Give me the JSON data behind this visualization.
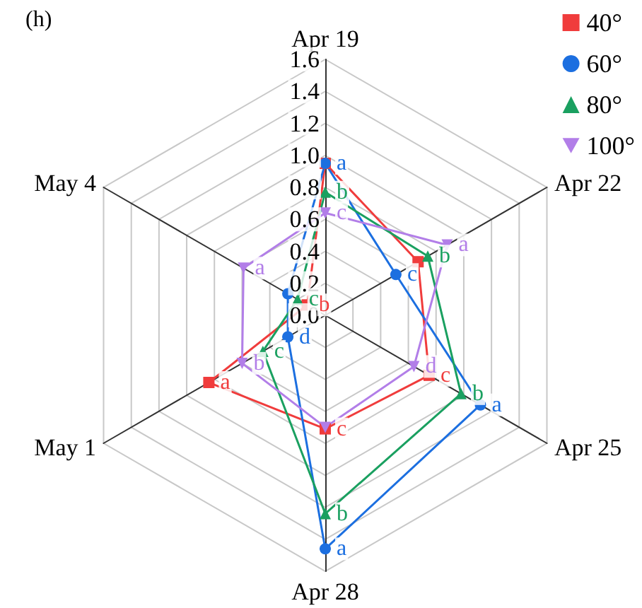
{
  "chart_data": {
    "type": "radar",
    "title": "(h)",
    "categories": [
      "Apr 19",
      "Apr 22",
      "Apr 25",
      "Apr 28",
      "May 1",
      "May 4"
    ],
    "ylim": [
      0,
      1.6
    ],
    "yticks": [
      {
        "value": 0,
        "label": "0.0"
      },
      {
        "value": 0.2,
        "label": "0.2"
      },
      {
        "value": 0.4,
        "label": "0.4"
      },
      {
        "value": 0.6,
        "label": "0.6"
      },
      {
        "value": 0.8,
        "label": "0.8"
      },
      {
        "value": 1,
        "label": "1.0"
      },
      {
        "value": 1.2,
        "label": "1.2"
      },
      {
        "value": 1.4,
        "label": "1.4"
      },
      {
        "value": 1.6,
        "label": "1.6"
      }
    ],
    "grid": true,
    "legend": "top right",
    "series": [
      {
        "name": "40°",
        "color": "#f03c3c",
        "marker": "square",
        "values": [
          0.95,
          0.67,
          0.75,
          0.71,
          0.84,
          0.13
        ],
        "value_labels": [
          null,
          null,
          "c",
          "c",
          "a",
          "b"
        ]
      },
      {
        "name": "60°",
        "color": "#1c6fe0",
        "marker": "circle",
        "values": [
          0.95,
          0.51,
          1.12,
          1.46,
          0.27,
          0.27
        ],
        "value_labels": [
          "a",
          "c",
          "a",
          "a",
          "d",
          null
        ]
      },
      {
        "name": "80°",
        "color": "#1aa060",
        "marker": "triangle",
        "values": [
          0.77,
          0.74,
          0.98,
          1.24,
          0.45,
          0.2
        ],
        "value_labels": [
          "b",
          "b",
          "b",
          "b",
          "c",
          "c"
        ]
      },
      {
        "name": "100°",
        "color": "#b27ee8",
        "marker": "triangle-down",
        "values": [
          0.64,
          0.88,
          0.64,
          0.7,
          0.6,
          0.59
        ],
        "value_labels": [
          "c",
          "a",
          "d",
          null,
          "b",
          "a"
        ]
      }
    ]
  }
}
